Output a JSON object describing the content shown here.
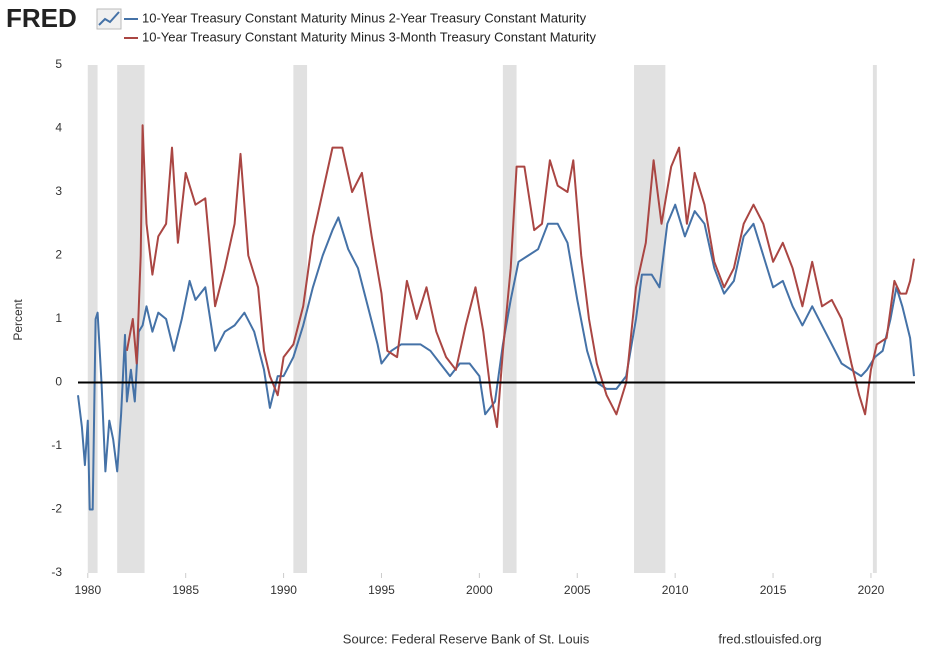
{
  "logo": "FRED",
  "chart_data": {
    "type": "line",
    "ylabel": "Percent",
    "source": "Source: Federal Reserve Bank of St. Louis",
    "site": "fred.stlouisfed.org",
    "xlim": [
      1979.5,
      2022.25
    ],
    "xticks": [
      1980,
      1985,
      1990,
      1995,
      2000,
      2005,
      2010,
      2015,
      2020
    ],
    "ylim": [
      -3,
      5
    ],
    "yticks": [
      5,
      4,
      3,
      2,
      1,
      0,
      -1,
      -2,
      -3
    ],
    "grid": false,
    "recessions": [
      [
        1980.0,
        1980.5
      ],
      [
        1981.5,
        1982.9
      ],
      [
        1990.5,
        1991.2
      ],
      [
        2001.2,
        2001.9
      ],
      [
        2007.9,
        2009.5
      ],
      [
        2020.1,
        2020.3
      ]
    ],
    "recession_color": "#e1e1e1",
    "series": [
      {
        "name": "10-Year Treasury Constant Maturity Minus 2-Year Treasury Constant Maturity",
        "color": "#4572a7",
        "x": [
          1979.5,
          1979.7,
          1979.85,
          1980.0,
          1980.1,
          1980.25,
          1980.4,
          1980.5,
          1980.7,
          1980.9,
          1981.1,
          1981.3,
          1981.5,
          1981.7,
          1981.9,
          1982.0,
          1982.2,
          1982.4,
          1982.6,
          1982.8,
          1983.0,
          1983.3,
          1983.6,
          1984.0,
          1984.4,
          1984.8,
          1985.2,
          1985.5,
          1986.0,
          1986.5,
          1987.0,
          1987.5,
          1988.0,
          1988.5,
          1989.0,
          1989.3,
          1989.7,
          1990.0,
          1990.5,
          1991.0,
          1991.5,
          1992.0,
          1992.5,
          1992.8,
          1993.3,
          1993.8,
          1994.3,
          1994.8,
          1995.0,
          1995.5,
          1996.0,
          1996.5,
          1997.0,
          1997.5,
          1998.0,
          1998.5,
          1999.0,
          1999.5,
          2000.0,
          2000.3,
          2000.8,
          2001.2,
          2001.6,
          2002.0,
          2002.5,
          2003.0,
          2003.5,
          2004.0,
          2004.5,
          2005.0,
          2005.5,
          2006.0,
          2006.5,
          2007.0,
          2007.5,
          2008.0,
          2008.3,
          2008.8,
          2009.2,
          2009.6,
          2010.0,
          2010.5,
          2011.0,
          2011.5,
          2012.0,
          2012.5,
          2013.0,
          2013.5,
          2014.0,
          2014.5,
          2015.0,
          2015.5,
          2016.0,
          2016.5,
          2017.0,
          2017.5,
          2018.0,
          2018.5,
          2019.0,
          2019.5,
          2019.8,
          2020.2,
          2020.6,
          2021.0,
          2021.3,
          2021.6,
          2022.0,
          2022.2
        ],
        "values": [
          -0.2,
          -0.7,
          -1.3,
          -0.6,
          -2.0,
          -2.0,
          1.0,
          1.1,
          0.0,
          -1.4,
          -0.6,
          -0.9,
          -1.4,
          -0.5,
          0.75,
          -0.3,
          0.2,
          -0.3,
          0.8,
          0.9,
          1.2,
          0.8,
          1.1,
          1.0,
          0.5,
          1.0,
          1.6,
          1.3,
          1.5,
          0.5,
          0.8,
          0.9,
          1.1,
          0.8,
          0.2,
          -0.4,
          0.1,
          0.1,
          0.4,
          0.9,
          1.5,
          2.0,
          2.4,
          2.6,
          2.1,
          1.8,
          1.2,
          0.6,
          0.3,
          0.5,
          0.6,
          0.6,
          0.6,
          0.5,
          0.3,
          0.1,
          0.3,
          0.3,
          0.1,
          -0.5,
          -0.3,
          0.6,
          1.3,
          1.9,
          2.0,
          2.1,
          2.5,
          2.5,
          2.2,
          1.3,
          0.5,
          0.0,
          -0.1,
          -0.1,
          0.1,
          1.0,
          1.7,
          1.7,
          1.5,
          2.5,
          2.8,
          2.3,
          2.7,
          2.5,
          1.8,
          1.4,
          1.6,
          2.3,
          2.5,
          2.0,
          1.5,
          1.6,
          1.2,
          0.9,
          1.2,
          0.9,
          0.6,
          0.3,
          0.2,
          0.1,
          0.2,
          0.4,
          0.5,
          1.0,
          1.5,
          1.2,
          0.7,
          0.1
        ]
      },
      {
        "name": "10-Year Treasury Constant Maturity Minus 3-Month Treasury Constant Maturity",
        "color": "#aa4643",
        "x": [
          1982.0,
          1982.3,
          1982.5,
          1982.7,
          1982.8,
          1983.0,
          1983.3,
          1983.6,
          1984.0,
          1984.3,
          1984.6,
          1985.0,
          1985.5,
          1986.0,
          1986.5,
          1987.0,
          1987.5,
          1987.8,
          1988.2,
          1988.7,
          1989.0,
          1989.3,
          1989.7,
          1990.0,
          1990.5,
          1991.0,
          1991.5,
          1992.0,
          1992.5,
          1993.0,
          1993.5,
          1994.0,
          1994.5,
          1995.0,
          1995.3,
          1995.8,
          1996.3,
          1996.8,
          1997.3,
          1997.8,
          1998.3,
          1998.8,
          1999.3,
          1999.8,
          2000.2,
          2000.6,
          2000.9,
          2001.2,
          2001.6,
          2001.9,
          2002.3,
          2002.8,
          2003.2,
          2003.6,
          2004.0,
          2004.5,
          2004.8,
          2005.2,
          2005.6,
          2006.0,
          2006.5,
          2007.0,
          2007.5,
          2008.0,
          2008.5,
          2008.9,
          2009.3,
          2009.8,
          2010.2,
          2010.6,
          2011.0,
          2011.5,
          2012.0,
          2012.5,
          2013.0,
          2013.5,
          2014.0,
          2014.5,
          2015.0,
          2015.5,
          2016.0,
          2016.5,
          2017.0,
          2017.5,
          2018.0,
          2018.5,
          2019.0,
          2019.4,
          2019.7,
          2020.0,
          2020.3,
          2020.8,
          2021.2,
          2021.5,
          2021.8,
          2022.0,
          2022.2
        ],
        "values": [
          0.5,
          1.0,
          0.3,
          2.0,
          4.05,
          2.5,
          1.7,
          2.3,
          2.5,
          3.7,
          2.2,
          3.3,
          2.8,
          2.9,
          1.2,
          1.8,
          2.5,
          3.6,
          2.0,
          1.5,
          0.5,
          0.1,
          -0.2,
          0.4,
          0.6,
          1.2,
          2.3,
          3.0,
          3.7,
          3.7,
          3.0,
          3.3,
          2.3,
          1.4,
          0.5,
          0.4,
          1.6,
          1.0,
          1.5,
          0.8,
          0.4,
          0.2,
          0.9,
          1.5,
          0.8,
          -0.2,
          -0.7,
          0.5,
          1.8,
          3.4,
          3.4,
          2.4,
          2.5,
          3.5,
          3.1,
          3.0,
          3.5,
          2.0,
          1.0,
          0.3,
          -0.2,
          -0.5,
          0.0,
          1.5,
          2.2,
          3.5,
          2.5,
          3.4,
          3.7,
          2.5,
          3.3,
          2.8,
          1.9,
          1.5,
          1.8,
          2.5,
          2.8,
          2.5,
          1.9,
          2.2,
          1.8,
          1.2,
          1.9,
          1.2,
          1.3,
          1.0,
          0.3,
          -0.2,
          -0.5,
          0.2,
          0.6,
          0.7,
          1.6,
          1.4,
          1.4,
          1.6,
          1.95
        ]
      }
    ]
  }
}
